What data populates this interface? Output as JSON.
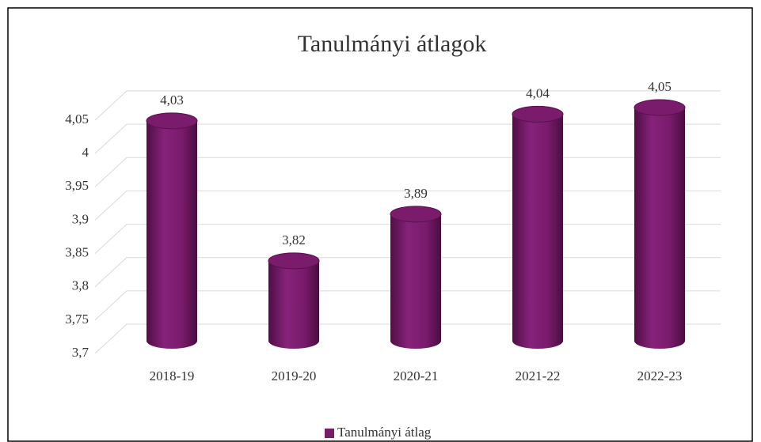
{
  "chart_data": {
    "type": "bar",
    "title": "Tanulmányi átlagok",
    "categories": [
      "2018-19",
      "2019-20",
      "2020-21",
      "2021-22",
      "2022-23"
    ],
    "series": [
      {
        "name": "Tanulmányi átlag",
        "color": "#7a1b6c",
        "values": [
          4.03,
          3.82,
          3.89,
          4.04,
          4.05
        ],
        "value_labels": [
          "4,03",
          "3,82",
          "3,89",
          "4,04",
          "4,05"
        ]
      }
    ],
    "ylim": [
      3.7,
      4.05
    ],
    "yticks": [
      {
        "value": 3.7,
        "label": "3,7"
      },
      {
        "value": 3.75,
        "label": "3,75"
      },
      {
        "value": 3.8,
        "label": "3,8"
      },
      {
        "value": 3.85,
        "label": "3,85"
      },
      {
        "value": 3.9,
        "label": "3,9"
      },
      {
        "value": 3.95,
        "label": "3,95"
      },
      4,
      {
        "value": 4.05,
        "label": "4,05"
      }
    ],
    "grid": true,
    "legend": "bottom"
  }
}
